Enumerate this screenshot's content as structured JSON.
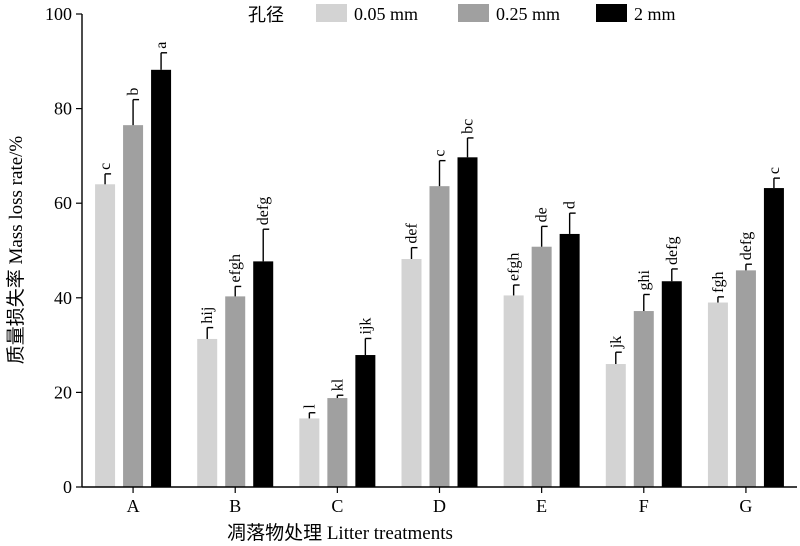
{
  "chart_data": {
    "type": "bar",
    "ylabel": "质量损失率 Mass loss rate/%",
    "xlabel": "凋落物处理 Litter treatments",
    "ylim": [
      0,
      100
    ],
    "yticks": [
      0,
      20,
      40,
      60,
      80,
      100
    ],
    "categories": [
      "A",
      "B",
      "C",
      "D",
      "E",
      "F",
      "G"
    ],
    "legend_title": "孔径",
    "legend_position": "top",
    "series": [
      {
        "name": "0.05 mm",
        "color": "#d3d3d3",
        "values": [
          64,
          31.3,
          14.5,
          48.2,
          40.5,
          26,
          39
        ],
        "errors": [
          2.2,
          2.4,
          1.2,
          2.4,
          2.2,
          2.5,
          1.2
        ],
        "labels": [
          "c",
          "hij",
          "l",
          "def",
          "efgh",
          "jk",
          "fgh"
        ]
      },
      {
        "name": "0.25 mm",
        "color": "#a0a0a0",
        "values": [
          76.5,
          40.3,
          18.8,
          63.6,
          50.8,
          37.2,
          45.8
        ],
        "errors": [
          5.4,
          2.1,
          0.6,
          5.4,
          4.3,
          3.5,
          1.3
        ],
        "labels": [
          "b",
          "efgh",
          "kl",
          "c",
          "de",
          "ghi",
          "defg"
        ]
      },
      {
        "name": "2 mm",
        "color": "#000000",
        "values": [
          88.2,
          47.7,
          27.9,
          69.7,
          53.5,
          43.5,
          63.2
        ],
        "errors": [
          3.6,
          6.8,
          3.5,
          4.1,
          4.4,
          2.6,
          2.1
        ],
        "labels": [
          "a",
          "defg",
          "ijk",
          "bc",
          "d",
          "defg",
          "c"
        ]
      }
    ]
  }
}
